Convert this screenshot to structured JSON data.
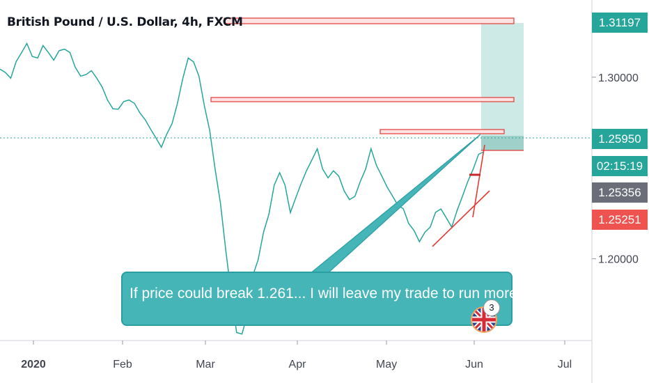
{
  "chart_data": {
    "type": "line",
    "title": "British Pound / U.S. Dollar, 4h, FXCM",
    "x_ticks": [
      "2020",
      "Feb",
      "Mar",
      "Apr",
      "May",
      "Jun",
      "Jul"
    ],
    "y_ticks": [
      "1.30000",
      "1.20000"
    ],
    "ylim": [
      1.155,
      1.3425
    ],
    "series": [
      {
        "values": [
          1.305,
          1.302,
          1.3,
          1.308,
          1.314,
          1.318,
          1.312,
          1.31,
          1.318,
          1.313,
          1.31,
          1.314,
          1.316,
          1.313,
          1.306,
          1.3,
          1.302,
          1.303,
          1.3,
          1.294,
          1.288,
          1.282,
          1.283,
          1.286,
          1.288,
          1.285,
          1.281,
          1.276,
          1.272,
          1.266,
          1.262,
          1.268,
          1.275,
          1.285,
          1.3,
          1.31,
          1.309,
          1.3,
          1.285,
          1.27,
          1.25,
          1.23,
          1.205,
          1.18,
          1.16,
          1.158,
          1.17,
          1.19,
          1.2,
          1.214,
          1.225,
          1.24,
          1.248,
          1.24,
          1.226,
          1.233,
          1.242,
          1.248,
          1.255,
          1.26,
          1.25,
          1.244,
          1.249,
          1.245,
          1.238,
          1.232,
          1.235,
          1.242,
          1.25,
          1.26,
          1.252,
          1.245,
          1.24,
          1.234,
          1.23,
          1.227,
          1.22,
          1.215,
          1.21,
          1.214,
          1.218,
          1.225,
          1.228,
          1.222,
          1.218,
          1.226,
          1.235,
          1.242,
          1.25,
          1.257,
          1.2595
        ]
      }
    ],
    "price_labels": {
      "top_target": "1.31197",
      "current": "1.25950",
      "countdown": "02:15:19",
      "level_mid": "1.25356",
      "level_low": "1.25251"
    },
    "annotation": "If price could break 1.261... I will leave my trade to run more",
    "badge": "3",
    "colors": {
      "price_line": "#26a69a",
      "resistance_fill": "#fde4e4",
      "resistance_border": "#e53935",
      "target_zone": "#cbe9e6",
      "callout": "#45b5b8",
      "tag_green": "#26a69a",
      "tag_gray": "#6b6e79",
      "tag_red": "#ef5350"
    }
  }
}
